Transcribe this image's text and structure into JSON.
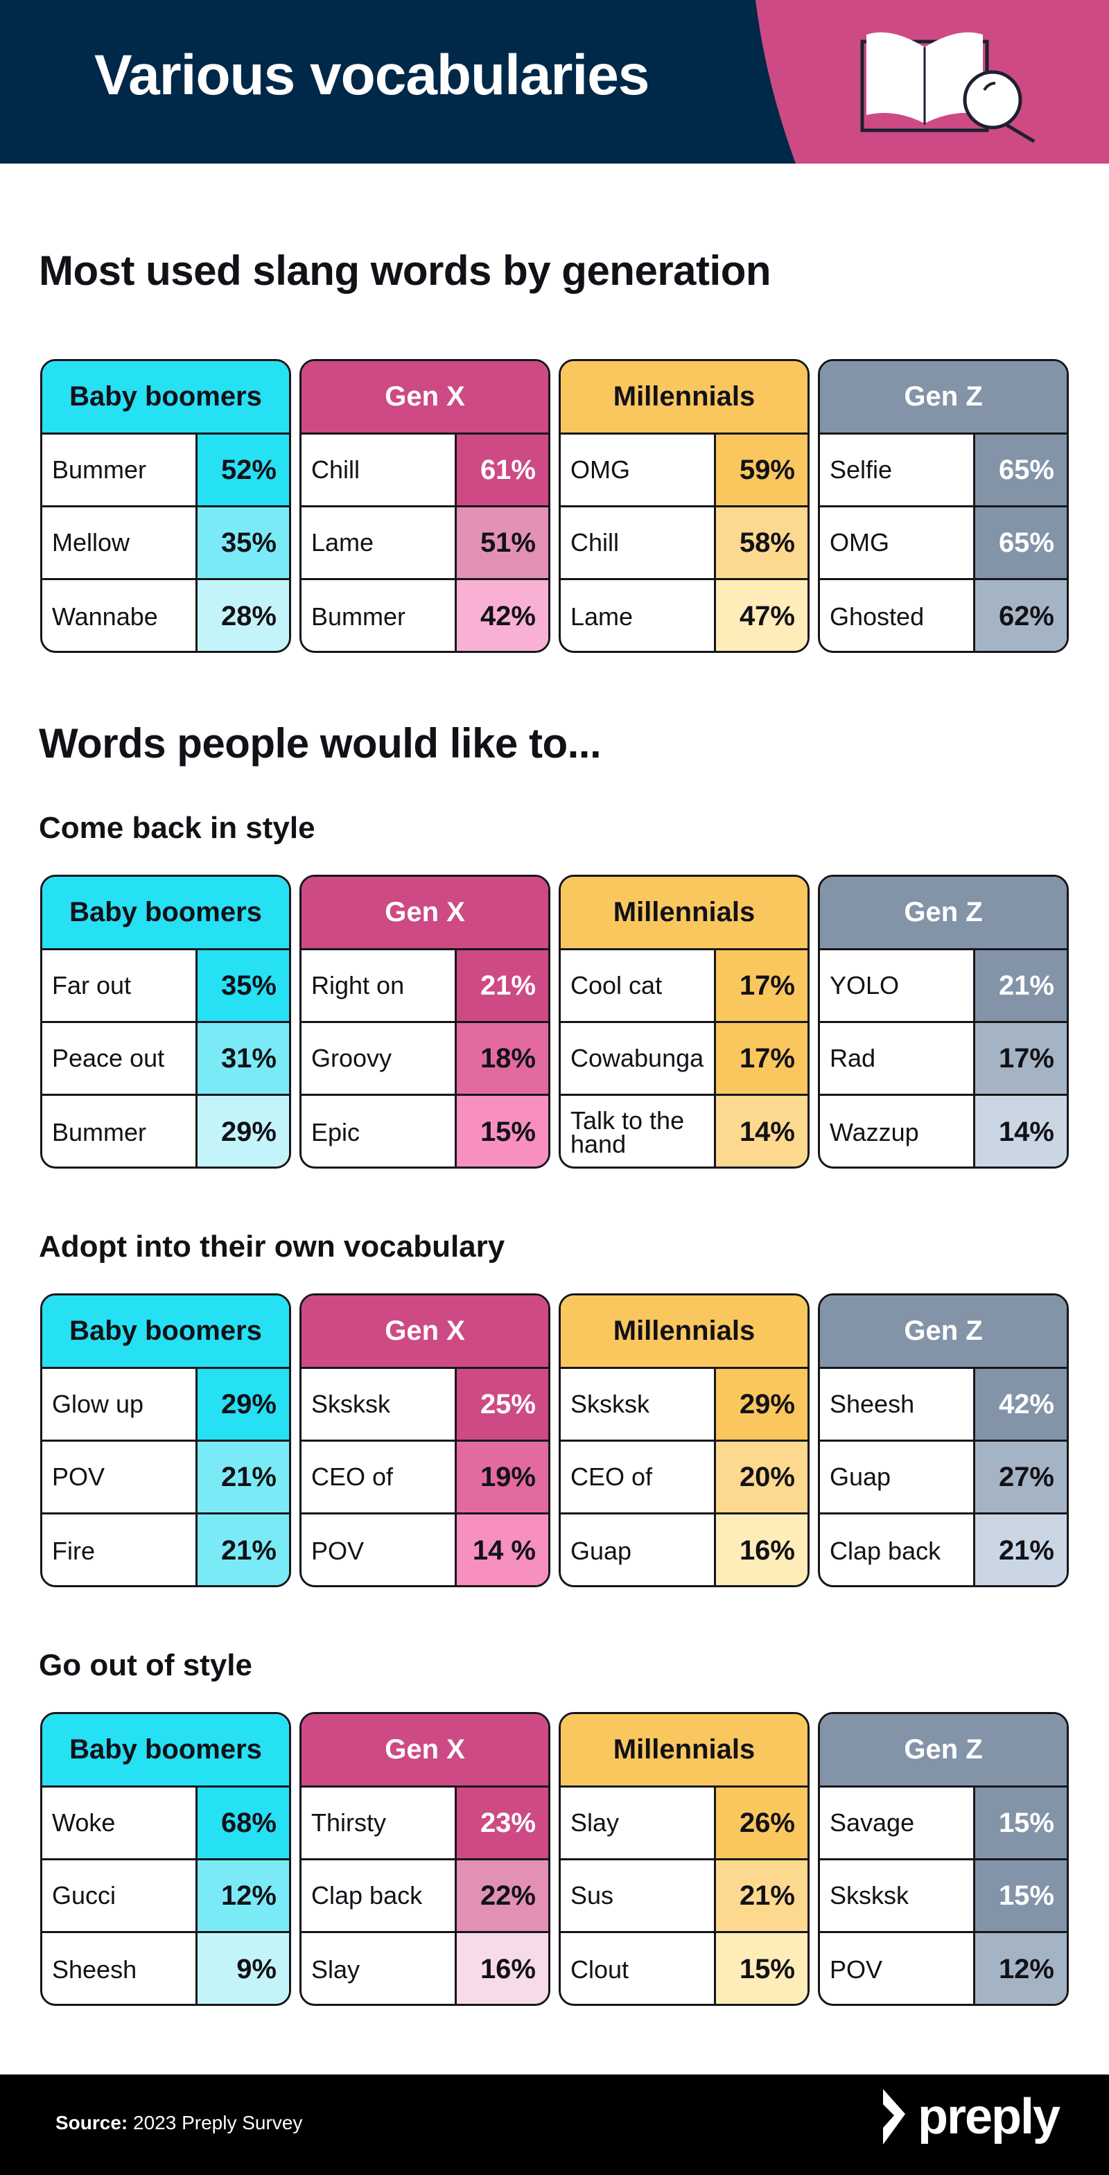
{
  "header": {
    "title": "Various vocabularies",
    "icon": "book-magnifier-icon",
    "bg": "#002848",
    "accent": "#CD4A84"
  },
  "palette": {
    "b0": "#26E0F4",
    "b1": "#7AEBF6",
    "b2": "#C3F4F9",
    "x0": "#CD4A84",
    "x1": "#E291B4",
    "x1b": "#E36AA0",
    "x2": "#F8B1D5",
    "x2b": "#F78FC0",
    "x3": "#F8DBE8",
    "m0": "#FAC75E",
    "m1": "#FCD98F",
    "m2": "#FEEDB8",
    "z0": "#8394A9",
    "z1": "#A5B4C5",
    "z2": "#CAD6E3"
  },
  "main_heading": "Most used slang words by generation",
  "sub_heading": "Words people would like to...",
  "sections": [
    {
      "title": "",
      "tables": [
        {
          "gen": "Baby boomers",
          "bg": "b0",
          "light_text": false,
          "rows": [
            [
              "Bummer",
              "52%",
              "b0",
              false
            ],
            [
              "Mellow",
              "35%",
              "b1",
              false
            ],
            [
              "Wannabe",
              "28%",
              "b2",
              false
            ]
          ]
        },
        {
          "gen": "Gen X",
          "bg": "x0",
          "light_text": true,
          "rows": [
            [
              "Chill",
              "61%",
              "x0",
              true
            ],
            [
              "Lame",
              "51%",
              "x1",
              false
            ],
            [
              "Bummer",
              "42%",
              "x2",
              false
            ]
          ]
        },
        {
          "gen": "Millennials",
          "bg": "m0",
          "light_text": false,
          "rows": [
            [
              "OMG",
              "59%",
              "m0",
              false
            ],
            [
              "Chill",
              "58%",
              "m1",
              false
            ],
            [
              "Lame",
              "47%",
              "m2",
              false
            ]
          ]
        },
        {
          "gen": "Gen Z",
          "bg": "z0",
          "light_text": true,
          "rows": [
            [
              "Selfie",
              "65%",
              "z0",
              true
            ],
            [
              "OMG",
              "65%",
              "z0",
              true
            ],
            [
              "Ghosted",
              "62%",
              "z1",
              false
            ]
          ]
        }
      ]
    },
    {
      "title": "Come back in style",
      "tables": [
        {
          "gen": "Baby boomers",
          "bg": "b0",
          "light_text": false,
          "rows": [
            [
              "Far out",
              "35%",
              "b0",
              false
            ],
            [
              "Peace out",
              "31%",
              "b1",
              false
            ],
            [
              "Bummer",
              "29%",
              "b2",
              false
            ]
          ]
        },
        {
          "gen": "Gen X",
          "bg": "x0",
          "light_text": true,
          "rows": [
            [
              "Right on",
              "21%",
              "x0",
              true
            ],
            [
              "Groovy",
              "18%",
              "x1b",
              false
            ],
            [
              "Epic",
              "15%",
              "x2b",
              false
            ]
          ]
        },
        {
          "gen": "Millennials",
          "bg": "m0",
          "light_text": false,
          "rows": [
            [
              "Cool cat",
              "17%",
              "m0",
              false
            ],
            [
              "Cowabunga",
              "17%",
              "m0",
              false
            ],
            [
              "Talk to the hand",
              "14%",
              "m1",
              false
            ]
          ]
        },
        {
          "gen": "Gen Z",
          "bg": "z0",
          "light_text": true,
          "rows": [
            [
              "YOLO",
              "21%",
              "z0",
              true
            ],
            [
              "Rad",
              "17%",
              "z1",
              false
            ],
            [
              "Wazzup",
              "14%",
              "z2",
              false
            ]
          ]
        }
      ]
    },
    {
      "title": "Adopt into their own vocabulary",
      "tables": [
        {
          "gen": "Baby boomers",
          "bg": "b0",
          "light_text": false,
          "rows": [
            [
              "Glow up",
              "29%",
              "b0",
              false
            ],
            [
              "POV",
              "21%",
              "b1",
              false
            ],
            [
              "Fire",
              "21%",
              "b1",
              false
            ]
          ]
        },
        {
          "gen": "Gen X",
          "bg": "x0",
          "light_text": true,
          "rows": [
            [
              "Sksksk",
              "25%",
              "x0",
              true
            ],
            [
              "CEO of",
              "19%",
              "x1b",
              false
            ],
            [
              "POV",
              "14 %",
              "x2b",
              false
            ]
          ]
        },
        {
          "gen": "Millennials",
          "bg": "m0",
          "light_text": false,
          "rows": [
            [
              "Sksksk",
              "29%",
              "m0",
              false
            ],
            [
              "CEO of",
              "20%",
              "m1",
              false
            ],
            [
              "Guap",
              "16%",
              "m2",
              false
            ]
          ]
        },
        {
          "gen": "Gen Z",
          "bg": "z0",
          "light_text": true,
          "rows": [
            [
              "Sheesh",
              "42%",
              "z0",
              true
            ],
            [
              "Guap",
              "27%",
              "z1",
              false
            ],
            [
              "Clap back",
              "21%",
              "z2",
              false
            ]
          ]
        }
      ]
    },
    {
      "title": "Go out of style",
      "tables": [
        {
          "gen": "Baby boomers",
          "bg": "b0",
          "light_text": false,
          "rows": [
            [
              "Woke",
              "68%",
              "b0",
              false
            ],
            [
              "Gucci",
              "12%",
              "b1",
              false
            ],
            [
              "Sheesh",
              "9%",
              "b2",
              false
            ]
          ]
        },
        {
          "gen": "Gen X",
          "bg": "x0",
          "light_text": true,
          "rows": [
            [
              "Thirsty",
              "23%",
              "x0",
              true
            ],
            [
              "Clap back",
              "22%",
              "x1",
              false
            ],
            [
              "Slay",
              "16%",
              "x3",
              false
            ]
          ]
        },
        {
          "gen": "Millennials",
          "bg": "m0",
          "light_text": false,
          "rows": [
            [
              "Slay",
              "26%",
              "m0",
              false
            ],
            [
              "Sus",
              "21%",
              "m1",
              false
            ],
            [
              "Clout",
              "15%",
              "m2",
              false
            ]
          ]
        },
        {
          "gen": "Gen Z",
          "bg": "z0",
          "light_text": true,
          "rows": [
            [
              "Savage",
              "15%",
              "z0",
              true
            ],
            [
              "Sksksk",
              "15%",
              "z0",
              true
            ],
            [
              "POV",
              "12%",
              "z1",
              false
            ]
          ]
        }
      ]
    }
  ],
  "footer": {
    "source_label": "Source:",
    "source_text": " 2023 Preply Survey",
    "logo": "preply"
  }
}
